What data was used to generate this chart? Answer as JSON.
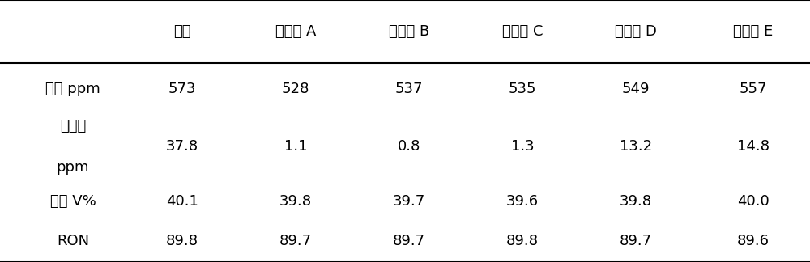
{
  "columns": [
    "",
    "原料",
    "催化剂 A",
    "催化剂 B",
    "催化剂 C",
    "催化剂 D",
    "催化剂 E"
  ],
  "rows": [
    {
      "label": "总硫 ppm",
      "label2": "",
      "values": [
        "573",
        "528",
        "537",
        "535",
        "549",
        "557"
      ]
    },
    {
      "label": "硫醇硫",
      "label2": "ppm",
      "values": [
        "37.8",
        "1.1",
        "0.8",
        "1.3",
        "13.2",
        "14.8"
      ]
    },
    {
      "label": "烯烃 V%",
      "label2": "",
      "values": [
        "40.1",
        "39.8",
        "39.7",
        "39.6",
        "39.8",
        "40.0"
      ]
    },
    {
      "label": "RON",
      "label2": "",
      "values": [
        "89.8",
        "89.7",
        "89.7",
        "89.8",
        "89.7",
        "89.6"
      ]
    }
  ],
  "bg_color": "#ffffff",
  "text_color": "#000000",
  "header_line_color": "#000000",
  "outer_line_color": "#000000",
  "font_size": 13,
  "header_font_size": 13
}
